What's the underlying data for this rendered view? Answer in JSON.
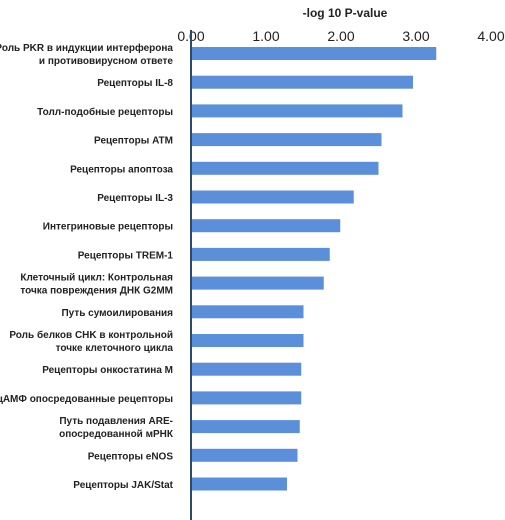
{
  "chart_data": {
    "type": "bar",
    "orientation": "horizontal",
    "xlabel": "-log 10 P-value",
    "ylabel": "",
    "xlim": [
      0,
      4
    ],
    "xticks": [
      "0.00",
      "1.00",
      "2.00",
      "3.00",
      "4.00"
    ],
    "x_axis_position": "top",
    "grid": false,
    "categories": [
      "Роль PKR в индукции интерферона и противовирусном ответе",
      "Рецепторы IL-8",
      "Толл-подобные рецепторы",
      "Рецепторы ATM",
      "Рецепторы апоптоза",
      "Рецепторы IL-3",
      "Интегриновые рецепторы",
      "Рецепторы TREM-1",
      "Клеточный цикл: Контрольная точка повреждения ДНК G2MM",
      "Путь сумоилирования",
      "Роль белков CHK в контрольной точке клеточного цикла",
      "Рецепторы онкостатина M",
      "цАМФ опосредованные рецепторы",
      "Путь подавления ARE-опосредованной мРНК",
      "Рецепторы eNOS",
      "Рецепторы JAK/Stat"
    ],
    "category_lines": [
      [
        "Роль PKR в индукции интерферона",
        "и противовирусном ответе"
      ],
      [
        "Рецепторы IL-8"
      ],
      [
        "Толл-подобные рецепторы"
      ],
      [
        "Рецепторы ATM"
      ],
      [
        "Рецепторы апоптоза"
      ],
      [
        "Рецепторы IL-3"
      ],
      [
        "Интегриновые рецепторы"
      ],
      [
        "Рецепторы TREM-1"
      ],
      [
        "Клеточный цикл: Контрольная",
        "точка повреждения ДНК G2MM"
      ],
      [
        "Путь сумоилирования"
      ],
      [
        "Роль белков CHK в контрольной",
        "точке клеточного цикла"
      ],
      [
        "Рецепторы онкостатина M"
      ],
      [
        "цАМФ опосредованные рецепторы"
      ],
      [
        "Путь подавления ARE-",
        "опосредованной мРНК"
      ],
      [
        "Рецепторы eNOS"
      ],
      [
        "Рецепторы JAK/Stat"
      ]
    ],
    "values": [
      3.27,
      2.96,
      2.82,
      2.54,
      2.5,
      2.17,
      1.99,
      1.85,
      1.77,
      1.5,
      1.5,
      1.47,
      1.47,
      1.45,
      1.42,
      1.28
    ],
    "bar_color": "#5b8fd9",
    "axis_color": "#2e4a6b"
  }
}
